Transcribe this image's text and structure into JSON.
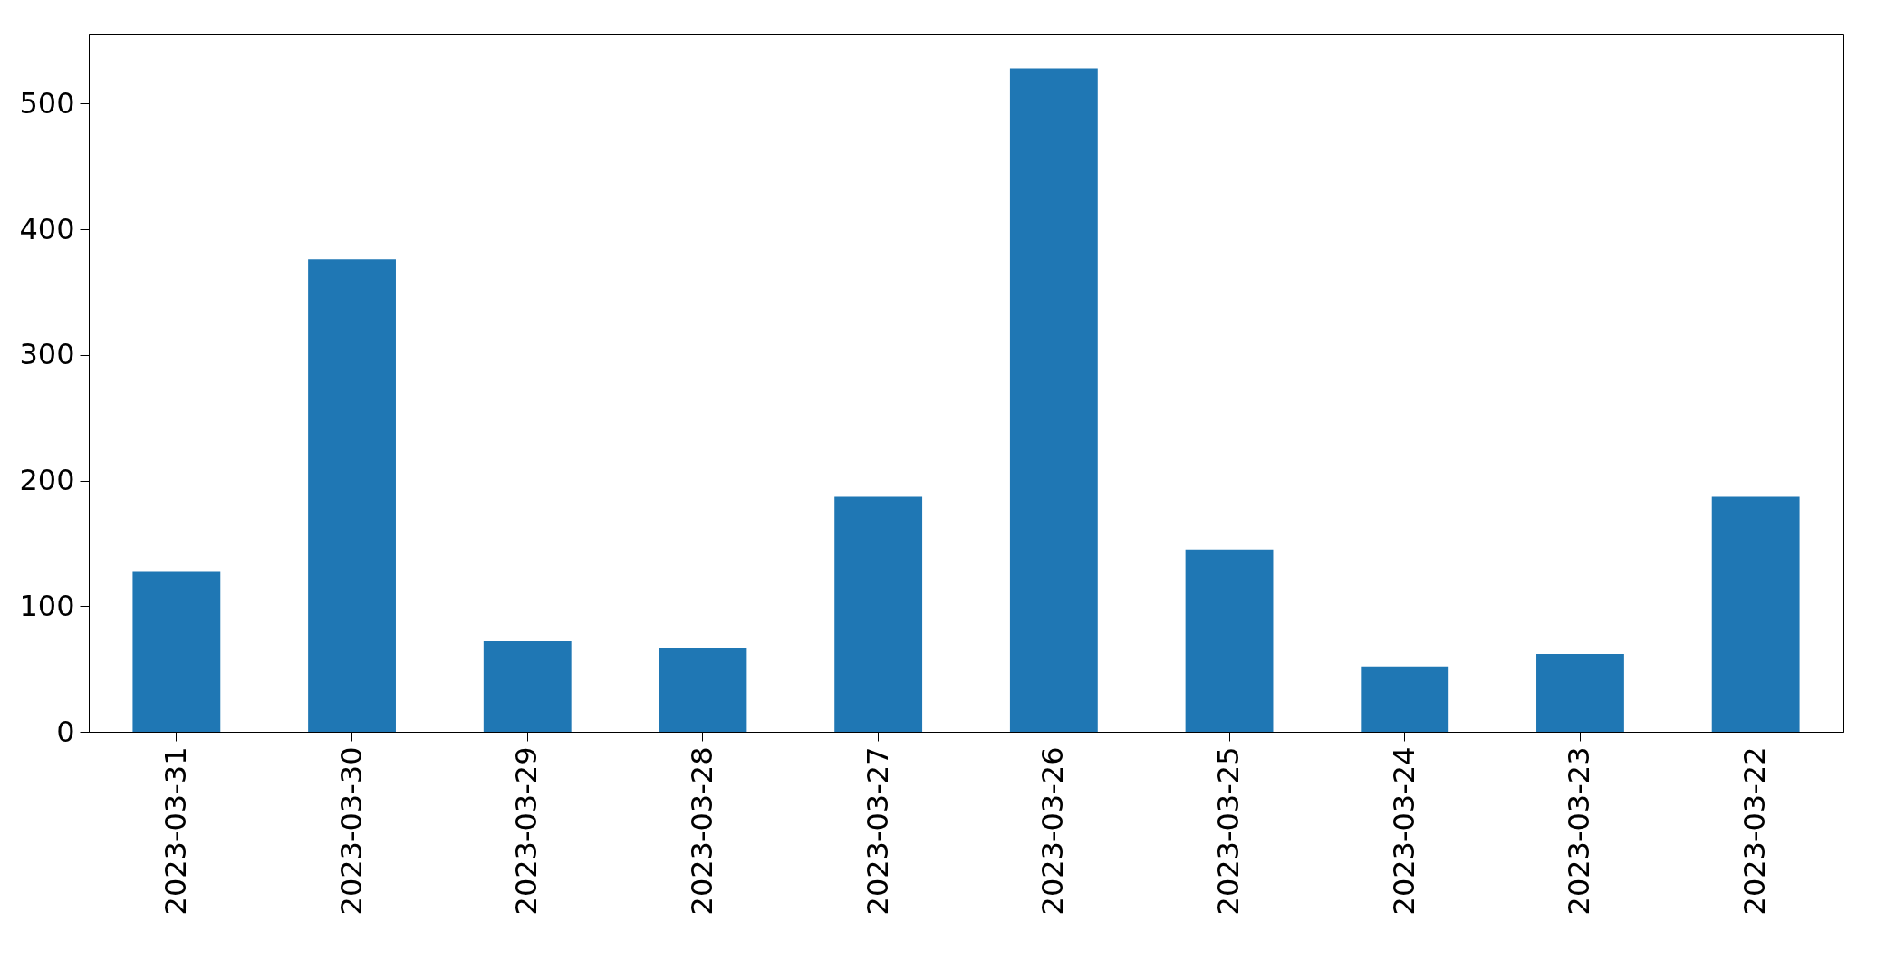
{
  "chart_data": {
    "type": "bar",
    "categories": [
      "2023-03-31",
      "2023-03-30",
      "2023-03-29",
      "2023-03-28",
      "2023-03-27",
      "2023-03-26",
      "2023-03-25",
      "2023-03-24",
      "2023-03-23",
      "2023-03-22"
    ],
    "values": [
      128,
      376,
      72,
      67,
      187,
      528,
      145,
      52,
      62,
      187
    ],
    "color": "#1f77b4",
    "ylim": [
      0,
      555
    ],
    "yticks": [
      0,
      100,
      200,
      300,
      400,
      500
    ],
    "grid": false
  }
}
